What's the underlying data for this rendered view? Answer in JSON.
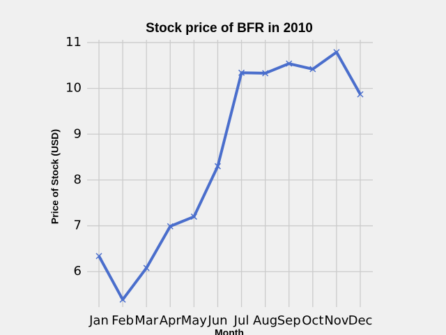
{
  "chart_data": {
    "type": "line",
    "title": "Stock price of BFR in 2010",
    "x_label": "Month",
    "y_label": "Price of Stock (USD)",
    "categories": [
      "Jan",
      "Feb",
      "Mar",
      "Apr",
      "May",
      "Jun",
      "Jul",
      "Aug",
      "Sep",
      "Oct",
      "Nov",
      "Dec"
    ],
    "values": [
      6.34,
      5.39,
      6.08,
      6.99,
      7.2,
      8.3,
      10.34,
      10.33,
      10.54,
      10.42,
      10.79,
      9.87
    ],
    "color": "#4a6ecc",
    "ylim": [
      5.12,
      11.06
    ],
    "yticks": [
      6,
      7,
      8,
      9,
      10,
      11
    ],
    "grid": true
  }
}
